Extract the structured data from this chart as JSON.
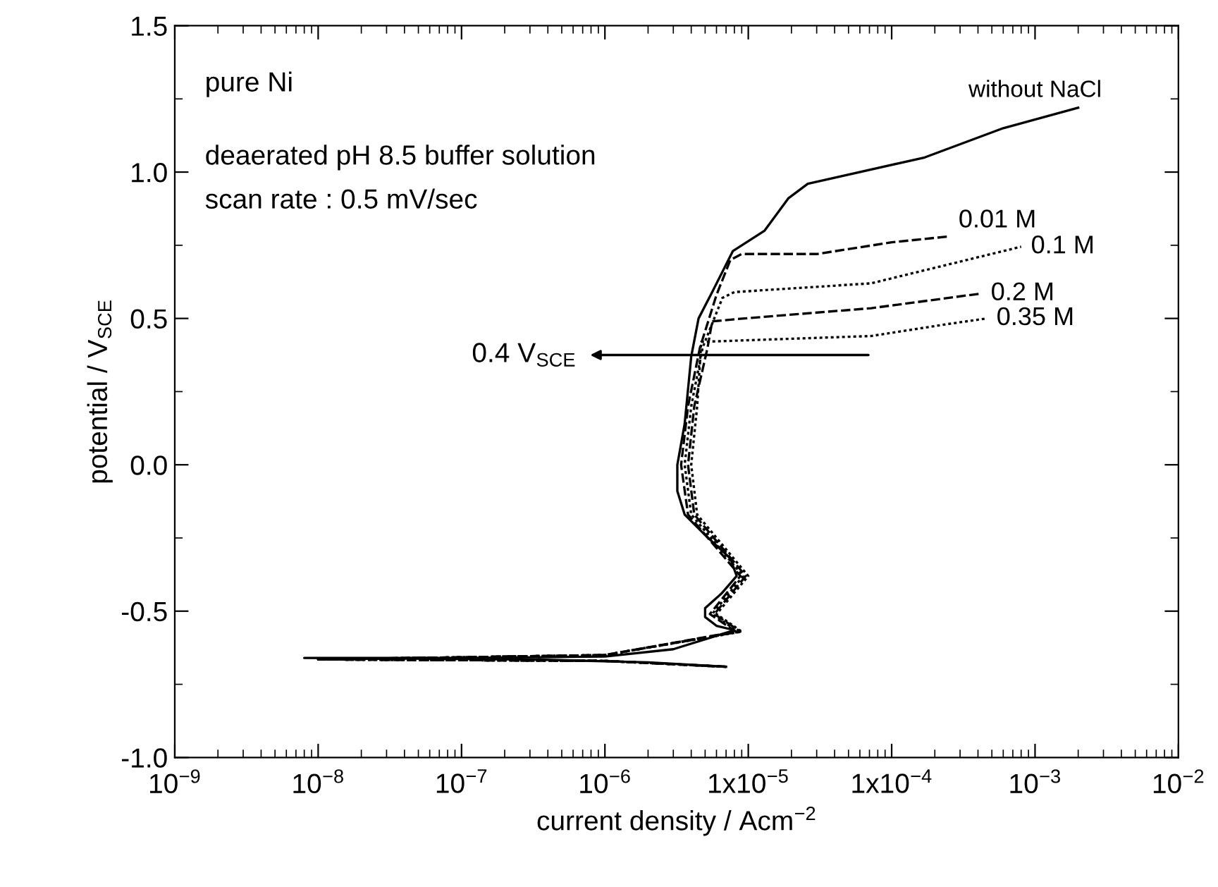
{
  "chart_data": {
    "type": "line",
    "xlabel": "current density / Acm$^{−2}$",
    "ylabel": "potential / V$_{SCE}$",
    "log": "x",
    "xlim": [
      1e-09,
      0.01
    ],
    "ylim": [
      -1.0,
      1.5
    ],
    "xticks": [
      {
        "value": 1e-09,
        "label": "10$^{−9}$"
      },
      {
        "value": 1e-08,
        "label": "10$^{−8}$"
      },
      {
        "value": 1e-07,
        "label": "10$^{−7}$"
      },
      {
        "value": 1e-06,
        "label": "10$^{−6}$"
      },
      {
        "value": 1e-05,
        "label": "1x10$^{−5}$"
      },
      {
        "value": 0.0001,
        "label": "1x10$^{−4}$"
      },
      {
        "value": 0.001,
        "label": "10$^{−3}$"
      },
      {
        "value": 0.01,
        "label": "10$^{−2}$"
      }
    ],
    "yticks": [
      {
        "value": -1.0,
        "label": "-1.0"
      },
      {
        "value": -0.5,
        "label": "-0.5"
      },
      {
        "value": 0.0,
        "label": "0.0"
      },
      {
        "value": 0.5,
        "label": "0.5"
      },
      {
        "value": 1.0,
        "label": "1.0"
      },
      {
        "value": 1.5,
        "label": "1.5"
      }
    ],
    "grid": false,
    "legend": false,
    "marker": "none",
    "annotations": [
      "pure Ni",
      "deaerated pH 8.5 buffer solution",
      "scan rate : 0.5 mV/sec",
      "0.4 V$_{SCE}$"
    ],
    "series": [
      {
        "name": "without NaCl",
        "color": "#000000",
        "line_style": "solid",
        "x": [
          7e-06,
          2e-06,
          3e-07,
          8e-09,
          1e-07,
          1e-06,
          3e-06,
          8e-06,
          6e-06,
          5e-06,
          5e-06,
          6.5e-06,
          8.3e-06,
          7.5e-06,
          5e-06,
          3.6e-06,
          3.2e-06,
          3.2e-06,
          3.6e-06,
          4e-06,
          4.5e-06,
          5.6e-06,
          7.8e-06,
          1.3e-05,
          1.9e-05,
          2.6e-05,
          0.00017,
          0.0006,
          0.002
        ],
        "values": [
          -0.69,
          -0.675,
          -0.665,
          -0.66,
          -0.66,
          -0.655,
          -0.63,
          -0.565,
          -0.55,
          -0.52,
          -0.49,
          -0.44,
          -0.38,
          -0.32,
          -0.24,
          -0.17,
          -0.09,
          0.0,
          0.14,
          0.37,
          0.5,
          0.59,
          0.73,
          0.8,
          0.91,
          0.96,
          1.05,
          1.15,
          1.22
        ]
      },
      {
        "name": "0.01 M",
        "color": "#000000",
        "line_style": "dashed",
        "x": [
          7e-06,
          1e-06,
          1e-08,
          1e-06,
          8.2e-06,
          5.4e-06,
          8.8e-06,
          3.8e-06,
          3.4e-06,
          3.8e-06,
          4.6e-06,
          6e-06,
          7.5e-06,
          9e-06,
          3e-05,
          0.0001,
          0.00025
        ],
        "values": [
          -0.69,
          -0.67,
          -0.665,
          -0.65,
          -0.57,
          -0.51,
          -0.38,
          -0.17,
          0.0,
          0.2,
          0.4,
          0.58,
          0.7,
          0.72,
          0.72,
          0.76,
          0.78
        ]
      },
      {
        "name": "0.1 M",
        "color": "#000000",
        "line_style": "dotted",
        "x": [
          7e-06,
          1e-06,
          1e-08,
          1e-06,
          8.5e-06,
          5.6e-06,
          9.2e-06,
          4e-06,
          3.6e-06,
          4e-06,
          4.8e-06,
          6.6e-06,
          8e-06,
          7.2e-05,
          0.0008
        ],
        "values": [
          -0.69,
          -0.67,
          -0.665,
          -0.65,
          -0.57,
          -0.51,
          -0.38,
          -0.17,
          0.0,
          0.2,
          0.4,
          0.57,
          0.59,
          0.62,
          0.745
        ]
      },
      {
        "name": "0.2 M",
        "color": "#000000",
        "line_style": "dashed",
        "x": [
          7e-06,
          1e-06,
          1e-08,
          1e-06,
          8.8e-06,
          5.8e-06,
          9.6e-06,
          4.2e-06,
          3.8e-06,
          4.2e-06,
          5.2e-06,
          5.6e-06,
          9.4e-06,
          7.2e-05,
          0.00042
        ],
        "values": [
          -0.69,
          -0.67,
          -0.665,
          -0.65,
          -0.57,
          -0.51,
          -0.38,
          -0.17,
          0.0,
          0.2,
          0.4,
          0.49,
          0.5,
          0.535,
          0.585
        ]
      },
      {
        "name": "0.35 M",
        "color": "#000000",
        "line_style": "dotted",
        "x": [
          7e-06,
          1e-06,
          1e-08,
          1e-06,
          9e-06,
          6e-06,
          1e-05,
          4.4e-06,
          4e-06,
          4.4e-06,
          4.7e-06,
          7.2e-05,
          0.00024,
          0.00046
        ],
        "values": [
          -0.69,
          -0.67,
          -0.665,
          -0.65,
          -0.57,
          -0.51,
          -0.38,
          -0.17,
          0.0,
          0.2,
          0.42,
          0.44,
          0.48,
          0.5
        ]
      }
    ]
  }
}
